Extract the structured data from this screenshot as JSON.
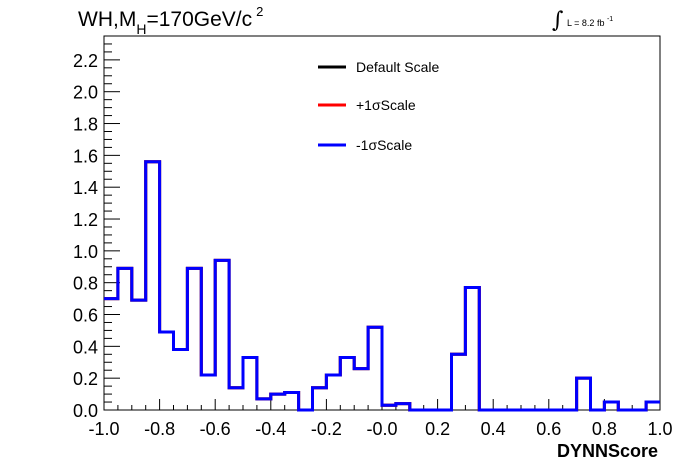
{
  "title": {
    "text_main": "WH,M",
    "text_sub": "H",
    "text_rest": "=170GeV/c",
    "text_sup": "2"
  },
  "luminosity": {
    "symbol": "∫",
    "text": "L = 8.2 fb",
    "exponent": "-1"
  },
  "chart_data": {
    "type": "line",
    "style": "step-histogram",
    "xlabel": "DYNNScore",
    "ylabel": "",
    "xlim": [
      -1.0,
      1.0
    ],
    "ylim": [
      0.0,
      2.35
    ],
    "x_ticks": [
      "-1.0",
      "-0.8",
      "-0.6",
      "-0.4",
      "-0.2",
      "-0.0",
      "0.2",
      "0.4",
      "0.6",
      "0.8",
      "1.0"
    ],
    "y_ticks": [
      "0.0",
      "0.2",
      "0.4",
      "0.6",
      "0.8",
      "1.0",
      "1.2",
      "1.4",
      "1.6",
      "1.8",
      "2.0",
      "2.2"
    ],
    "bin_edges": [
      -1.0,
      -0.95,
      -0.9,
      -0.85,
      -0.8,
      -0.75,
      -0.7,
      -0.65,
      -0.6,
      -0.55,
      -0.5,
      -0.45,
      -0.4,
      -0.35,
      -0.3,
      -0.25,
      -0.2,
      -0.15,
      -0.1,
      -0.05,
      0.0,
      0.05,
      0.1,
      0.15,
      0.2,
      0.25,
      0.3,
      0.35,
      0.4,
      0.45,
      0.5,
      0.55,
      0.6,
      0.65,
      0.7,
      0.75,
      0.8,
      0.85,
      0.9,
      0.95,
      1.0
    ],
    "series": [
      {
        "name": "Default Scale",
        "color": "#000000",
        "values": [
          0.7,
          0.89,
          0.69,
          1.56,
          0.49,
          0.38,
          0.89,
          0.22,
          0.94,
          0.14,
          0.33,
          0.07,
          0.1,
          0.11,
          0.0,
          0.14,
          0.22,
          0.33,
          0.26,
          0.52,
          0.03,
          0.04,
          0.0,
          0.0,
          0.0,
          0.35,
          0.77,
          0.0,
          0.0,
          0.0,
          0.0,
          0.0,
          0.0,
          0.0,
          0.2,
          0.0,
          0.05,
          0.0,
          0.0,
          0.05
        ]
      },
      {
        "name": "+1σScale",
        "color": "#ff0000",
        "values": [
          0.7,
          0.89,
          0.69,
          1.56,
          0.49,
          0.38,
          0.89,
          0.22,
          0.94,
          0.14,
          0.33,
          0.07,
          0.1,
          0.11,
          0.0,
          0.14,
          0.22,
          0.33,
          0.26,
          0.52,
          0.03,
          0.04,
          0.0,
          0.0,
          0.0,
          0.35,
          0.77,
          0.0,
          0.0,
          0.0,
          0.0,
          0.0,
          0.0,
          0.0,
          0.2,
          0.0,
          0.05,
          0.0,
          0.0,
          0.05
        ]
      },
      {
        "name": "-1σScale",
        "color": "#0000ff",
        "values": [
          0.7,
          0.89,
          0.69,
          1.56,
          0.49,
          0.38,
          0.89,
          0.22,
          0.94,
          0.14,
          0.33,
          0.07,
          0.1,
          0.11,
          0.0,
          0.14,
          0.22,
          0.33,
          0.26,
          0.52,
          0.03,
          0.04,
          0.0,
          0.0,
          0.0,
          0.35,
          0.77,
          0.0,
          0.0,
          0.0,
          0.0,
          0.0,
          0.0,
          0.0,
          0.2,
          0.0,
          0.05,
          0.0,
          0.0,
          0.05
        ]
      }
    ],
    "legend_position": "top-center",
    "grid": false
  }
}
